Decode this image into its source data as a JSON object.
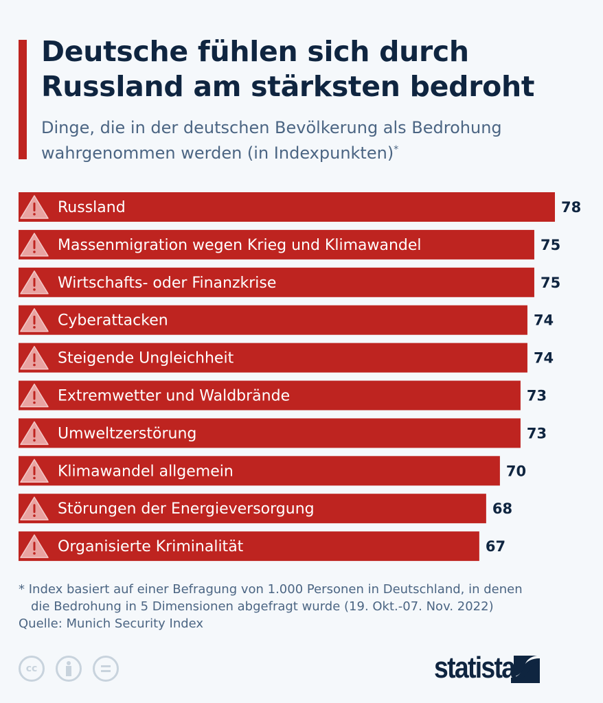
{
  "header": {
    "title": "Deutsche fühlen sich durch Russland am stärksten bedroht",
    "subtitle": "Dinge, die in der deutschen Bevölkerung als Bedrohung wahrgenommen werden (in Indexpunkten)",
    "subtitle_marker": "*"
  },
  "chart_data": {
    "type": "bar",
    "orientation": "horizontal",
    "categories": [
      "Russland",
      "Massenmigration wegen Krieg und Klimawandel",
      "Wirtschafts- oder Finanzkrise",
      "Cyberattacken",
      "Steigende Ungleichheit",
      "Extremwetter und Waldbrände",
      "Umweltzerstörung",
      "Klimawandel allgemein",
      "Störungen der Energieversorgung",
      "Organisierte Kriminalität"
    ],
    "values": [
      78,
      75,
      75,
      74,
      74,
      73,
      73,
      70,
      68,
      67
    ],
    "bar_icon": "warning-triangle-icon",
    "bar_color": "#be2420",
    "xlim": [
      0,
      78
    ],
    "grid": false
  },
  "footer": {
    "note_line1": "* Index basiert auf einer Befragung von 1.000 Personen in Deutschland, in denen",
    "note_line2": "die Bedrohung in 5 Dimensionen abgefragt wurde (19. Okt.-07. Nov. 2022)",
    "source": "Quelle: Munich Security Index",
    "license_icons": [
      "cc-icon",
      "attribution-icon",
      "no-derivatives-icon"
    ],
    "cc_text": "cc",
    "logo_text": "statista"
  },
  "colors": {
    "accent": "#be2420",
    "text": "#0f2540",
    "muted": "#4b6583",
    "background": "#f5f8fb"
  }
}
